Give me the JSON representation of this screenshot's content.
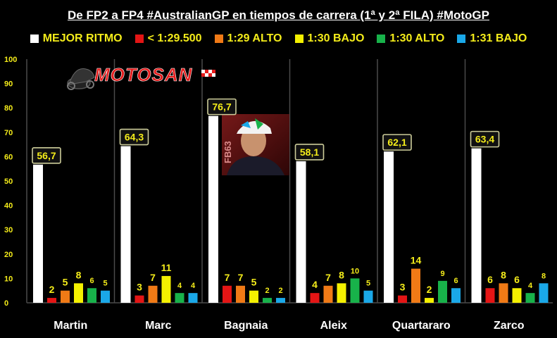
{
  "title": "De FP2 a FP4 #AustralianGP en tiempos de carrera (1ª y 2ª FILA) #MotoGP",
  "logo": {
    "text": "MOTOSAN",
    "badge": "FB63"
  },
  "colors": {
    "background": "#000000",
    "grid": "#4a4a4a",
    "axis_text": "#f4ec1a",
    "label_box_bg": "#111111",
    "label_box_border": "#cccc99"
  },
  "chart_data": {
    "type": "bar",
    "title": "De FP2 a FP4 #AustralianGP en tiempos de carrera (1ª y 2ª FILA) #MotoGP",
    "xlabel": "",
    "ylabel": "",
    "ylim": [
      0,
      100
    ],
    "yticks": [
      "0",
      "10",
      "20",
      "30",
      "40",
      "50",
      "60",
      "70",
      "80",
      "90",
      "100"
    ],
    "grid": false,
    "legend_position": "top",
    "categories": [
      "Martin",
      "Marc",
      "Bagnaia",
      "Aleix",
      "Quartararo",
      "Zarco"
    ],
    "series": [
      {
        "name": "MEJOR RITMO",
        "color": "#ffffff",
        "values": [
          56.7,
          64.3,
          76.7,
          58.1,
          62.1,
          63.4
        ],
        "labels": [
          "56,7",
          "64,3",
          "76,7",
          "58,1",
          "62,1",
          "63,4"
        ]
      },
      {
        "name": "< 1:29.500",
        "color": "#e41515",
        "values": [
          2,
          3,
          7,
          4,
          3,
          6
        ],
        "labels": [
          "2",
          "3",
          "7",
          "4",
          "3",
          "6"
        ]
      },
      {
        "name": "1:29 ALTO",
        "color": "#f07a16",
        "values": [
          5,
          7,
          7,
          7,
          14,
          8
        ],
        "labels": [
          "5",
          "7",
          "7",
          "7",
          "14",
          "8"
        ]
      },
      {
        "name": "1:30 BAJO",
        "color": "#f4f000",
        "values": [
          8,
          11,
          5,
          8,
          2,
          6
        ],
        "labels": [
          "8",
          "11",
          "5",
          "8",
          "2",
          "6"
        ]
      },
      {
        "name": "1:30 ALTO",
        "color": "#18b24a",
        "values": [
          6,
          4,
          2,
          10,
          9,
          4
        ],
        "labels": [
          "6",
          "4",
          "2",
          "10",
          "9",
          "4"
        ]
      },
      {
        "name": "1:31 BAJO",
        "color": "#1aa8e8",
        "values": [
          5,
          4,
          2,
          5,
          6,
          8
        ],
        "labels": [
          "5",
          "4",
          "2",
          "5",
          "6",
          "8"
        ]
      }
    ]
  }
}
